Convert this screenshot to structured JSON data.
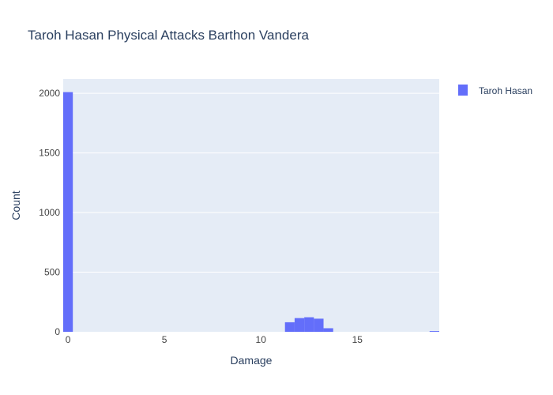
{
  "chart_data": {
    "type": "bar",
    "title": "Taroh Hasan Physical Attacks Barthon Vandera",
    "xlabel": "Damage",
    "ylabel": "Count",
    "xlim": [
      -0.25,
      19.25
    ],
    "ylim": [
      0,
      2120
    ],
    "x_ticks": [
      0,
      5,
      10,
      15
    ],
    "x_tick_labels": [
      "0",
      "5",
      "10",
      "15"
    ],
    "y_ticks": [
      0,
      500,
      1000,
      1500,
      2000
    ],
    "y_tick_labels": [
      "0",
      "500",
      "1000",
      "1500",
      "2000"
    ],
    "bin_width": 0.5,
    "grid": true,
    "legend_position": "top-right",
    "colors": {
      "bar": "#636efa",
      "plot_bg": "#e5ecf6",
      "grid": "#ffffff",
      "text": "#2a3f5f",
      "axis_text": "#444444"
    },
    "series": [
      {
        "name": "Taroh Hasan",
        "bins": [
          {
            "x0": -0.25,
            "x1": 0.25,
            "count": 2010
          },
          {
            "x0": 11.25,
            "x1": 11.75,
            "count": 80
          },
          {
            "x0": 11.75,
            "x1": 12.25,
            "count": 115
          },
          {
            "x0": 12.25,
            "x1": 12.75,
            "count": 122
          },
          {
            "x0": 12.75,
            "x1": 13.25,
            "count": 110
          },
          {
            "x0": 13.25,
            "x1": 13.75,
            "count": 30
          },
          {
            "x0": 18.75,
            "x1": 19.25,
            "count": 6
          }
        ]
      }
    ]
  }
}
